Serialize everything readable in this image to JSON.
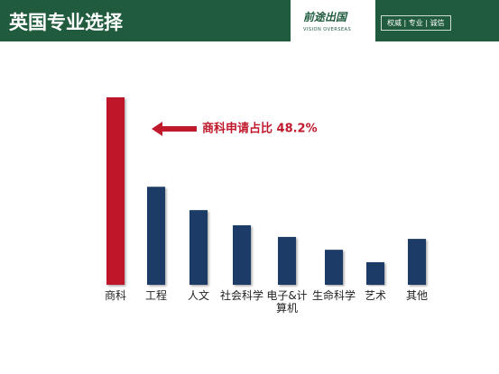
{
  "header": {
    "title": "英国专业选择",
    "brand": "前途出国",
    "brand_en": "VISION OVERSEAS",
    "tagline": "权威 | 专业 | 诚信"
  },
  "chart_data": {
    "type": "bar",
    "categories": [
      "商科",
      "工程",
      "人文",
      "社会科学",
      "电子&计算机",
      "生命科学",
      "艺术",
      "其他"
    ],
    "values": [
      48.2,
      25.2,
      19.2,
      15.3,
      12.3,
      9.0,
      5.8,
      11.8
    ],
    "colors": [
      "#c0192c",
      "#1f3a66",
      "#1f3a66",
      "#1f3a66",
      "#1f3a66",
      "#1f3a66",
      "#1f3a66",
      "#1f3a66"
    ],
    "annotation": "商科申请占比 48.2%",
    "annotation_color": "#c0192c"
  }
}
